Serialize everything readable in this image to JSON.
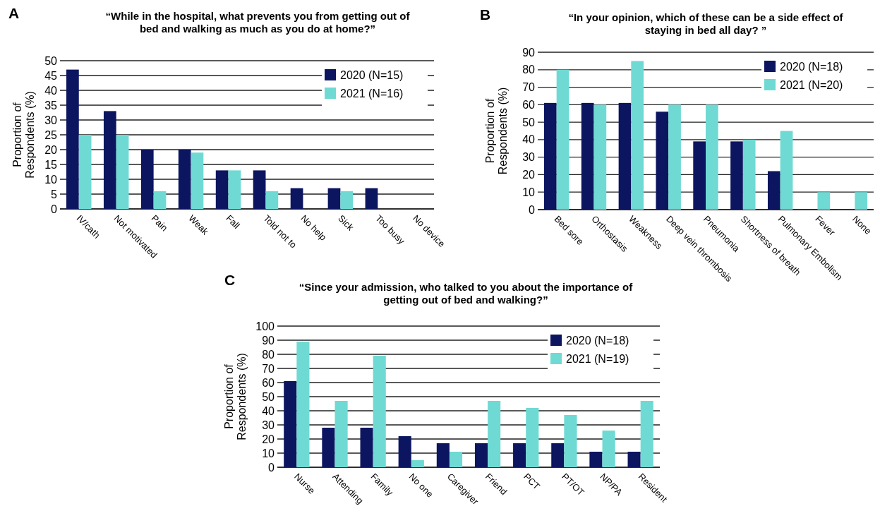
{
  "chart_data": [
    {
      "type": "bar",
      "title": "“While in the hospital, what prevents you from getting out of bed and walking as much as you do at home?”",
      "ylabel": "Proportion of Respondents (%)",
      "annotations": [
        "A"
      ],
      "categories": [
        "IV/cath",
        "Not motivated",
        "Pain",
        "Weak",
        "Fall",
        "Told not to",
        "No help",
        "Sick",
        "Too busy",
        "No device"
      ],
      "series": [
        {
          "name": "2020 (N=15)",
          "color": "#0c1560",
          "values": [
            47,
            33,
            20,
            20,
            13,
            13,
            7,
            7,
            7,
            0
          ]
        },
        {
          "name": "2021 (N=16)",
          "color": "#6fdad3",
          "values": [
            25,
            25,
            6,
            19,
            13,
            6,
            0,
            6,
            0,
            0
          ]
        }
      ],
      "ylim": [
        0,
        50
      ],
      "yticks": [
        0,
        5,
        10,
        15,
        20,
        25,
        30,
        35,
        40,
        45,
        50
      ],
      "grid": "y",
      "legend": "top right"
    },
    {
      "type": "bar",
      "title": "“In your opinion, which of these can be a side effect of staying in bed all day? ”",
      "ylabel": "Proportion of Respondents (%)",
      "annotations": [
        "B"
      ],
      "categories": [
        "Bed sore",
        "Orthostasis",
        "Weakness",
        "Deep vein thrombosis",
        "Pneumonia",
        "Shortness of breath",
        "Pulmonary Embolism",
        "Fever",
        "None"
      ],
      "series": [
        {
          "name": "2020 (N=18)",
          "color": "#0c1560",
          "values": [
            61,
            61,
            61,
            56,
            39,
            39,
            22,
            0,
            0
          ]
        },
        {
          "name": "2021 (N=20)",
          "color": "#6fdad3",
          "values": [
            80,
            60,
            85,
            60,
            60,
            40,
            45,
            10,
            10
          ]
        }
      ],
      "ylim": [
        0,
        90
      ],
      "yticks": [
        0,
        10,
        20,
        30,
        40,
        50,
        60,
        70,
        80,
        90
      ],
      "grid": "y",
      "legend": "top right"
    },
    {
      "type": "bar",
      "title": "“Since your admission, who talked to you about the importance of getting out of bed and walking?”",
      "ylabel": "Proportion of Respondents (%)",
      "annotations": [
        "C"
      ],
      "categories": [
        "Nurse",
        "Attending",
        "Family",
        "No one",
        "Caregiver",
        "Friend",
        "PCT",
        "PT/OT",
        "NP/PA",
        "Resident"
      ],
      "series": [
        {
          "name": "2020 (N=18)",
          "color": "#0c1560",
          "values": [
            61,
            28,
            28,
            22,
            17,
            17,
            17,
            17,
            11,
            11
          ]
        },
        {
          "name": "2021 (N=19)",
          "color": "#6fdad3",
          "values": [
            89,
            47,
            79,
            5,
            11,
            47,
            42,
            37,
            26,
            47
          ]
        }
      ],
      "ylim": [
        0,
        100
      ],
      "yticks": [
        0,
        10,
        20,
        30,
        40,
        50,
        60,
        70,
        80,
        90,
        100
      ],
      "grid": "y",
      "legend": "top right"
    }
  ]
}
